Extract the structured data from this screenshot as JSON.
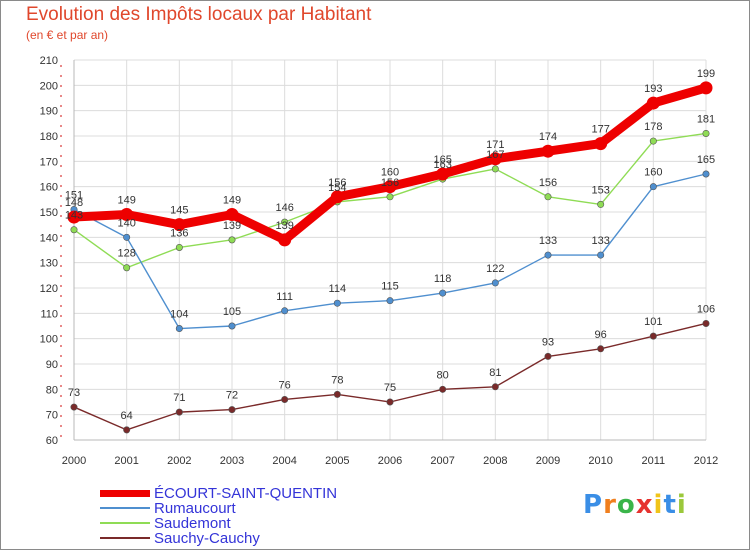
{
  "chart_data": {
    "type": "line",
    "title": "Evolution des Impôts locaux par Habitant",
    "subtitle": "(en € et par an)",
    "xlabel": "",
    "ylabel": "",
    "x": [
      "2000",
      "2001",
      "2002",
      "2003",
      "2004",
      "2005",
      "2006",
      "2007",
      "2008",
      "2009",
      "2010",
      "2011",
      "2012"
    ],
    "y_ticks": [
      60,
      70,
      80,
      90,
      100,
      110,
      120,
      130,
      140,
      150,
      160,
      170,
      180,
      190,
      200,
      210
    ],
    "ylim": [
      60,
      210
    ],
    "grid": true,
    "legend_position": "bottom-left",
    "series": [
      {
        "name": "ÉCOURT-SAINT-QUENTIN",
        "color": "#ee0000",
        "values": [
          148,
          149,
          145,
          149,
          139,
          156,
          160,
          165,
          171,
          174,
          177,
          193,
          199
        ],
        "labels": [
          "148",
          "149",
          "145",
          "149",
          "139",
          "156",
          "160",
          "165",
          "171",
          "174",
          "177",
          "193",
          "199"
        ]
      },
      {
        "name": "Rumaucourt",
        "color": "#4f8fcf",
        "values": [
          151,
          140,
          104,
          105,
          111,
          114,
          115,
          118,
          122,
          133,
          133,
          160,
          165
        ],
        "labels": [
          "151",
          "140",
          "104",
          "105",
          "111",
          "114",
          "115",
          "118",
          "122",
          "133",
          "133",
          "160",
          "165"
        ]
      },
      {
        "name": "Saudemont",
        "color": "#8fdc55",
        "values": [
          143,
          128,
          136,
          139,
          146,
          154,
          156,
          163,
          167,
          156,
          153,
          178,
          181
        ],
        "labels": [
          "143",
          "128",
          "136",
          "139",
          "146",
          "154",
          "156",
          "163",
          "167",
          "156",
          "153",
          "178",
          "181"
        ]
      },
      {
        "name": "Sauchy-Cauchy",
        "color": "#7a2a2a",
        "values": [
          73,
          64,
          71,
          72,
          76,
          78,
          75,
          80,
          81,
          93,
          96,
          101,
          106
        ],
        "labels": [
          "73",
          "64",
          "71",
          "72",
          "76",
          "78",
          "75",
          "80",
          "81",
          "93",
          "96",
          "101",
          "106"
        ]
      }
    ]
  },
  "logo": {
    "letters": [
      "P",
      "r",
      "o",
      "x",
      "i",
      "t",
      "i"
    ],
    "colors": [
      "#3a8ee6",
      "#f07f1e",
      "#3ab54a",
      "#e6322f",
      "#f0c419",
      "#3a8ee6",
      "#9bc83b"
    ]
  }
}
